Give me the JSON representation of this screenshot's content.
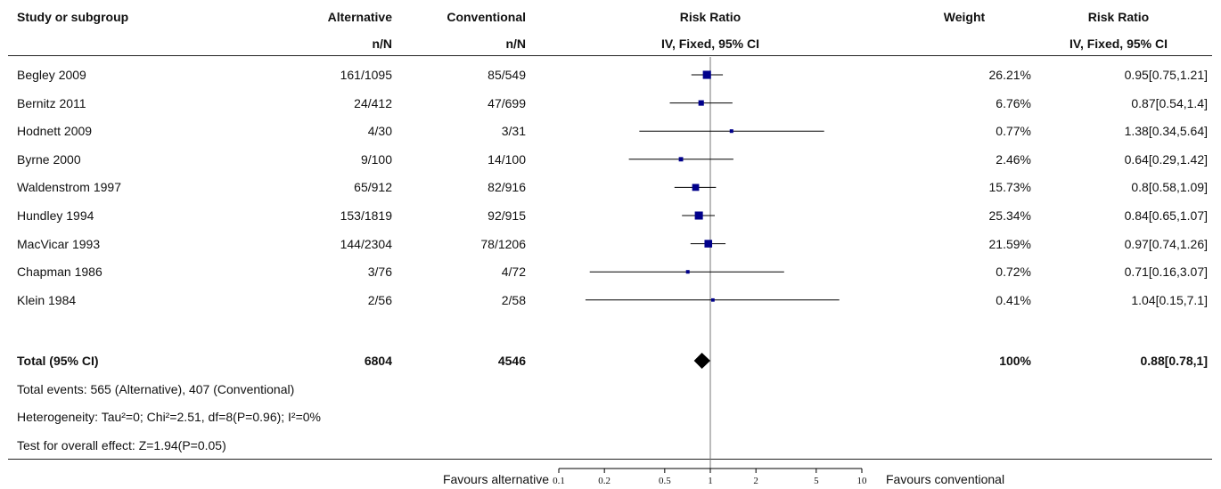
{
  "header": {
    "study": "Study or subgroup",
    "group1": "Alternative",
    "group1_sub": "n/N",
    "group2": "Conventional",
    "group2_sub": "n/N",
    "effect": "Risk Ratio",
    "effect_sub": "IV, Fixed, 95% CI",
    "weight": "Weight",
    "effect2": "Risk Ratio",
    "effect2_sub": "IV, Fixed, 95% CI"
  },
  "studies": [
    {
      "name": "Begley 2009",
      "alt": "161/1095",
      "conv": "85/549",
      "weight": "26.21%",
      "ci_text": "0.95[0.75,1.21]"
    },
    {
      "name": "Bernitz 2011",
      "alt": "24/412",
      "conv": "47/699",
      "weight": "6.76%",
      "ci_text": "0.87[0.54,1.4]"
    },
    {
      "name": "Hodnett 2009",
      "alt": "4/30",
      "conv": "3/31",
      "weight": "0.77%",
      "ci_text": "1.38[0.34,5.64]"
    },
    {
      "name": "Byrne 2000",
      "alt": "9/100",
      "conv": "14/100",
      "weight": "2.46%",
      "ci_text": "0.64[0.29,1.42]"
    },
    {
      "name": "Waldenstrom 1997",
      "alt": "65/912",
      "conv": "82/916",
      "weight": "15.73%",
      "ci_text": "0.8[0.58,1.09]"
    },
    {
      "name": "Hundley 1994",
      "alt": "153/1819",
      "conv": "92/915",
      "weight": "25.34%",
      "ci_text": "0.84[0.65,1.07]"
    },
    {
      "name": "MacVicar 1993",
      "alt": "144/2304",
      "conv": "78/1206",
      "weight": "21.59%",
      "ci_text": "0.97[0.74,1.26]"
    },
    {
      "name": "Chapman 1986",
      "alt": "3/76",
      "conv": "4/72",
      "weight": "0.72%",
      "ci_text": "0.71[0.16,3.07]"
    },
    {
      "name": "Klein 1984",
      "alt": "2/56",
      "conv": "2/58",
      "weight": "0.41%",
      "ci_text": "1.04[0.15,7.1]"
    }
  ],
  "total": {
    "label": "Total (95% CI)",
    "alt": "6804",
    "conv": "4546",
    "weight": "100%",
    "ci_text": "0.88[0.78,1]"
  },
  "footnotes": {
    "events": "Total events: 565 (Alternative), 407 (Conventional)",
    "heterogeneity": "Heterogeneity: Tau²=0; Chi²=2.51, df=8(P=0.96); I²=0%",
    "overall": "Test for overall effect: Z=1.94(P=0.05)"
  },
  "axis": {
    "left_label": "Favours alternative",
    "right_label": "Favours conventional"
  },
  "colors": {
    "marker": "#00008b",
    "line": "#000000"
  },
  "chart_data": {
    "type": "forest",
    "scale": "log",
    "xlim": [
      0.1,
      10
    ],
    "ticks": [
      0.1,
      0.2,
      0.5,
      1,
      2,
      5,
      10
    ],
    "tick_labels": [
      "0.1",
      "0.2",
      "0.5",
      "1",
      "2",
      "5",
      "10"
    ],
    "points": [
      {
        "rr": 0.95,
        "lo": 0.75,
        "hi": 1.21,
        "w": 26.21
      },
      {
        "rr": 0.87,
        "lo": 0.54,
        "hi": 1.4,
        "w": 6.76
      },
      {
        "rr": 1.38,
        "lo": 0.34,
        "hi": 5.64,
        "w": 0.77
      },
      {
        "rr": 0.64,
        "lo": 0.29,
        "hi": 1.42,
        "w": 2.46
      },
      {
        "rr": 0.8,
        "lo": 0.58,
        "hi": 1.09,
        "w": 15.73
      },
      {
        "rr": 0.84,
        "lo": 0.65,
        "hi": 1.07,
        "w": 25.34
      },
      {
        "rr": 0.97,
        "lo": 0.74,
        "hi": 1.26,
        "w": 21.59
      },
      {
        "rr": 0.71,
        "lo": 0.16,
        "hi": 3.07,
        "w": 0.72
      },
      {
        "rr": 1.04,
        "lo": 0.15,
        "hi": 7.1,
        "w": 0.41
      }
    ],
    "summary": {
      "rr": 0.88,
      "lo": 0.78,
      "hi": 1
    }
  }
}
